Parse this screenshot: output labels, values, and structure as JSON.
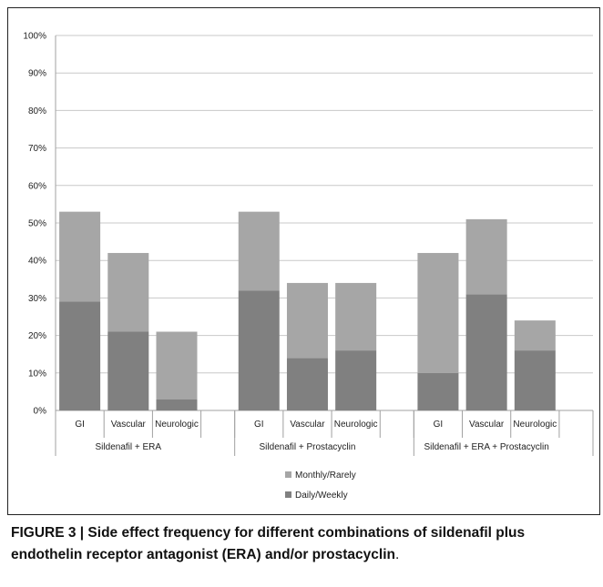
{
  "chart_data": {
    "type": "bar",
    "stacked": true,
    "groups": [
      {
        "label": "Sildenafil + ERA",
        "categories": [
          "GI",
          "Vascular",
          "Neurologic"
        ]
      },
      {
        "label": "Sildenafil + Prostacyclin",
        "categories": [
          "GI",
          "Vascular",
          "Neurologic"
        ]
      },
      {
        "label": "Sildenafil + ERA + Prostacyclin",
        "categories": [
          "GI",
          "Vascular",
          "Neurologic"
        ]
      }
    ],
    "series": [
      {
        "name": "Daily/Weekly",
        "color": "#808080",
        "values": [
          29,
          21,
          3,
          32,
          14,
          16,
          10,
          31,
          16
        ]
      },
      {
        "name": "Monthly/Rarely",
        "color": "#a6a6a6",
        "values": [
          24,
          21,
          18,
          21,
          20,
          18,
          32,
          20,
          8
        ]
      }
    ],
    "ylim": [
      0,
      100
    ],
    "yticks": [
      "0%",
      "10%",
      "20%",
      "30%",
      "40%",
      "50%",
      "60%",
      "70%",
      "80%",
      "90%",
      "100%"
    ],
    "grid": true,
    "legend": "bottom",
    "legend_order": [
      "Monthly/Rarely",
      "Daily/Weekly"
    ]
  },
  "caption": {
    "prefix": "FIGURE 3 | Side effect frequency for different combinations of sildenafil plus endothelin receptor antagonist (ERA) and/or prostacyclin",
    "suffix": "."
  }
}
